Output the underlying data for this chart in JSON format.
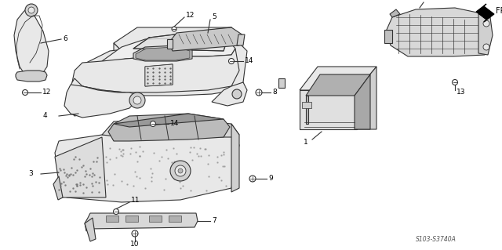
{
  "background_color": "#ffffff",
  "diagram_code": "S103-S3740A",
  "line_color": "#333333",
  "label_fontsize": 6.5,
  "label_color": "#000000",
  "fill_light": "#e8e8e8",
  "fill_mid": "#d0d0d0",
  "fill_dark": "#b8b8b8"
}
